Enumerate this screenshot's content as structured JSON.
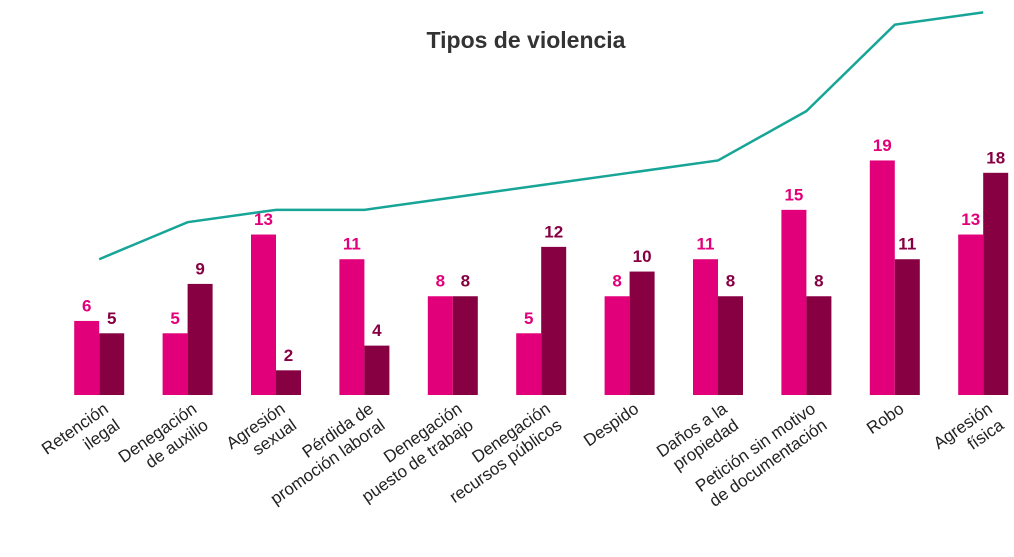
{
  "chart_data": {
    "type": "bar",
    "title": "Tipos de violencia",
    "categories": [
      [
        "Retención",
        "ilegal"
      ],
      [
        "Denegación",
        "de auxilio"
      ],
      [
        "Agresión",
        "sexual"
      ],
      [
        "Pérdida de",
        "promoción laboral"
      ],
      [
        "Denegación",
        "puesto de trabajo"
      ],
      [
        "Denegación",
        "recursos públicos"
      ],
      [
        "Despido"
      ],
      [
        "Daños a la",
        "propiedad"
      ],
      [
        "Petición sin motivo",
        "de documentación"
      ],
      [
        "Robo"
      ],
      [
        "Agresión",
        "física"
      ]
    ],
    "series": [
      {
        "color": "#e2007a",
        "values": [
          6,
          5,
          13,
          11,
          8,
          5,
          8,
          11,
          15,
          19,
          13
        ]
      },
      {
        "color": "#870042",
        "values": [
          5,
          9,
          2,
          4,
          8,
          12,
          10,
          8,
          8,
          11,
          18
        ]
      },
      {
        "type": "line",
        "color": "#16a596",
        "values": [
          11,
          14,
          15,
          15,
          16,
          17,
          18,
          19,
          23,
          30,
          31
        ]
      }
    ],
    "ylim": [
      0,
      32
    ]
  }
}
